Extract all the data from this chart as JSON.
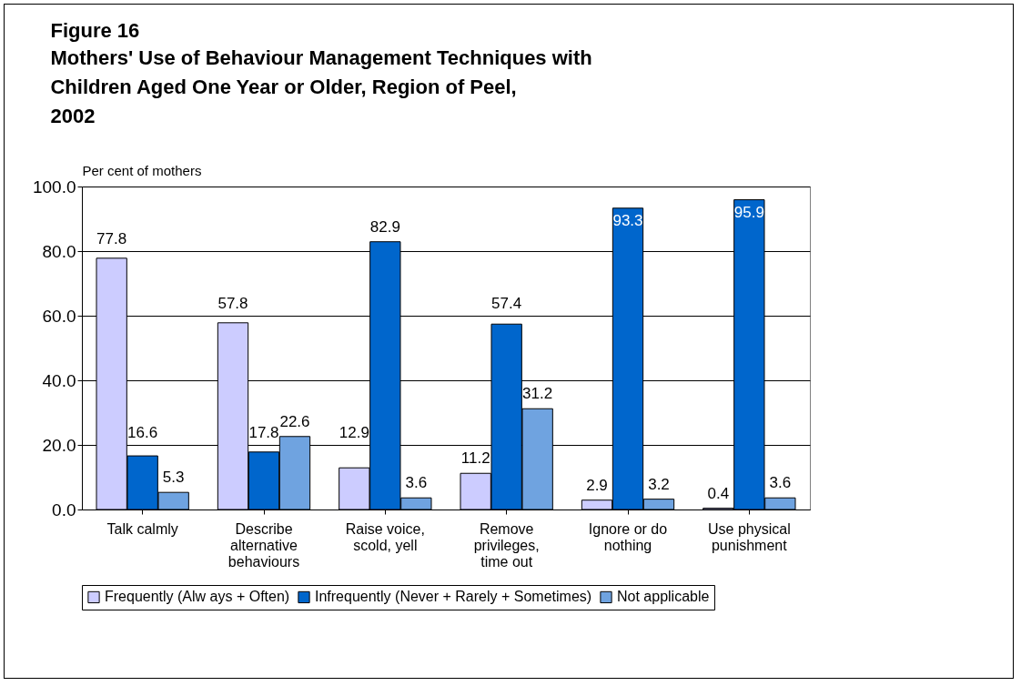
{
  "chart_data": {
    "type": "bar",
    "title": "Figure 16",
    "subtitle": "Mothers' Use of Behaviour Management Techniques with Children Aged One Year or Older, Region of Peel, 2002",
    "ylabel": "Per cent of mothers",
    "categories": [
      "Talk calmly",
      "Describe alternative behaviours",
      "Raise voice, scold, yell",
      "Remove privileges, time out",
      "Ignore or do nothing",
      "Use physical punishment"
    ],
    "series": [
      {
        "name": "Frequently (Alw ays + Often)",
        "color": "#ccccff",
        "values": [
          77.8,
          57.8,
          12.9,
          11.2,
          2.9,
          0.4
        ]
      },
      {
        "name": "Infrequently (Never + Rarely + Sometimes)",
        "color": "#0066cc",
        "values": [
          16.6,
          17.8,
          82.9,
          57.4,
          93.3,
          95.9
        ]
      },
      {
        "name": "Not applicable",
        "color": "#6fa3e0",
        "values": [
          5.3,
          22.6,
          3.6,
          31.2,
          3.2,
          3.6
        ]
      }
    ],
    "ylim": [
      0,
      100
    ],
    "yticks": [
      {
        "value": 0,
        "label": "0.0"
      },
      {
        "value": 20,
        "label": "20.0"
      },
      {
        "value": 40,
        "label": "40.0"
      },
      {
        "value": 60,
        "label": "60.0"
      },
      {
        "value": 80,
        "label": "80.0"
      },
      {
        "value": 100,
        "label": "100.0"
      }
    ],
    "grid": "y",
    "legend": "bottom",
    "data_labels": true
  }
}
